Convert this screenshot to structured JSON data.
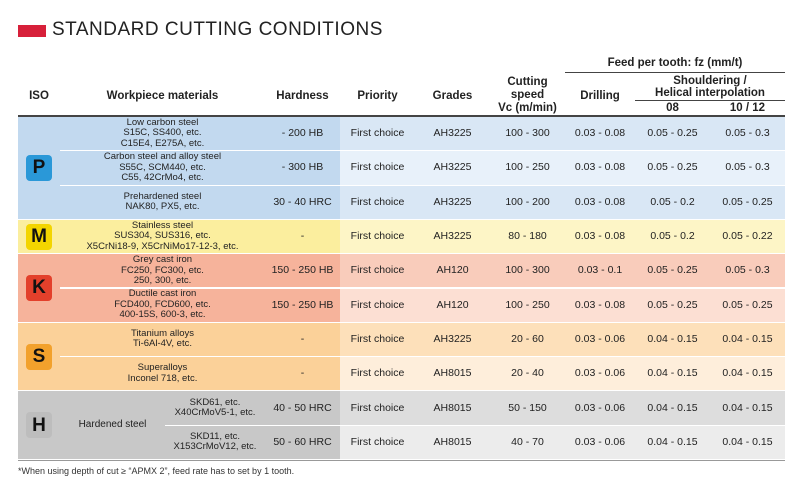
{
  "title": "STANDARD CUTTING CONDITIONS",
  "header": {
    "iso": "ISO",
    "materials": "Workpiece materials",
    "hardness": "Hardness",
    "priority": "Priority",
    "grades": "Grades",
    "cutting_speed": [
      "Cutting",
      "speed",
      "Vc (m/min)"
    ],
    "feed": "Feed per tooth: fz (mm/t)",
    "drilling": "Drilling",
    "shouldering": [
      "Shouldering /",
      "Helical interpolation"
    ],
    "dia_08": "08",
    "dia_10_12": "10 / 12"
  },
  "groups": [
    {
      "iso": "P",
      "rows": [
        {
          "material": [
            "Low carbon steel",
            "S15C, SS400, etc.",
            "C15E4, E275A, etc."
          ],
          "hardness": "- 200 HB",
          "priority": "First choice",
          "grade": "AH3225",
          "speed": "100 - 300",
          "drilling": "0.03 - 0.08",
          "shoulder_08": "0.05 - 0.25",
          "shoulder_10_12": "0.05 - 0.3"
        },
        {
          "material": [
            "Carbon steel and alloy steel",
            "S55C, SCM440, etc.",
            "C55, 42CrMo4, etc."
          ],
          "hardness": "- 300 HB",
          "priority": "First choice",
          "grade": "AH3225",
          "speed": "100 - 250",
          "drilling": "0.03 - 0.08",
          "shoulder_08": "0.05 - 0.25",
          "shoulder_10_12": "0.05 - 0.3"
        },
        {
          "material": [
            "Prehardened steel",
            "NAK80, PX5, etc."
          ],
          "hardness": "30 - 40 HRC",
          "priority": "First choice",
          "grade": "AH3225",
          "speed": "100 - 200",
          "drilling": "0.03 - 0.08",
          "shoulder_08": "0.05 - 0.2",
          "shoulder_10_12": "0.05 - 0.25"
        }
      ]
    },
    {
      "iso": "M",
      "rows": [
        {
          "material": [
            "Stainless steel",
            "SUS304, SUS316, etc.",
            "X5CrNi18-9, X5CrNiMo17-12-3, etc."
          ],
          "hardness": "-",
          "priority": "First choice",
          "grade": "AH3225",
          "speed": "80 - 180",
          "drilling": "0.03 - 0.08",
          "shoulder_08": "0.05 - 0.2",
          "shoulder_10_12": "0.05 - 0.22"
        }
      ]
    },
    {
      "iso": "K",
      "rows": [
        {
          "material": [
            "Grey cast iron",
            "FC250, FC300, etc.",
            "250, 300, etc."
          ],
          "hardness": "150 - 250 HB",
          "priority": "First choice",
          "grade": "AH120",
          "speed": "100 - 300",
          "drilling": "0.03 - 0.1",
          "shoulder_08": "0.05 - 0.25",
          "shoulder_10_12": "0.05 - 0.3"
        },
        {
          "material": [
            "Ductile cast iron",
            "FCD400, FCD600, etc.",
            "400-15S, 600-3, etc."
          ],
          "hardness": "150 - 250 HB",
          "priority": "First choice",
          "grade": "AH120",
          "speed": "100 - 250",
          "drilling": "0.03 - 0.08",
          "shoulder_08": "0.05 - 0.25",
          "shoulder_10_12": "0.05 - 0.25"
        }
      ]
    },
    {
      "iso": "S",
      "rows": [
        {
          "material": [
            "Titanium alloys",
            "Ti-6Al-4V, etc."
          ],
          "hardness": "-",
          "priority": "First choice",
          "grade": "AH3225",
          "speed": "20 - 60",
          "drilling": "0.03 - 0.06",
          "shoulder_08": "0.04 - 0.15",
          "shoulder_10_12": "0.04 - 0.15"
        },
        {
          "material": [
            "Superalloys",
            "Inconel 718, etc."
          ],
          "hardness": "-",
          "priority": "First choice",
          "grade": "AH8015",
          "speed": "20 - 40",
          "drilling": "0.03 - 0.06",
          "shoulder_08": "0.04 - 0.15",
          "shoulder_10_12": "0.04 - 0.15"
        }
      ]
    },
    {
      "iso": "H",
      "label": "Hardened steel",
      "rows": [
        {
          "material": [
            "SKD61, etc.",
            "X40CrMoV5-1, etc."
          ],
          "hardness": "40 - 50 HRC",
          "priority": "First choice",
          "grade": "AH8015",
          "speed": "50 - 150",
          "drilling": "0.03 - 0.06",
          "shoulder_08": "0.04 - 0.15",
          "shoulder_10_12": "0.04 - 0.15"
        },
        {
          "material": [
            "SKD11, etc.",
            "X153CrMoV12, etc."
          ],
          "hardness": "50 - 60 HRC",
          "priority": "First choice",
          "grade": "AH8015",
          "speed": "40 - 70",
          "drilling": "0.03 - 0.06",
          "shoulder_08": "0.04 - 0.15",
          "shoulder_10_12": "0.04 - 0.15"
        }
      ]
    }
  ],
  "footnote": "*When using depth of cut ≥ “APMX 2”, feed rate has to set by 1 tooth."
}
